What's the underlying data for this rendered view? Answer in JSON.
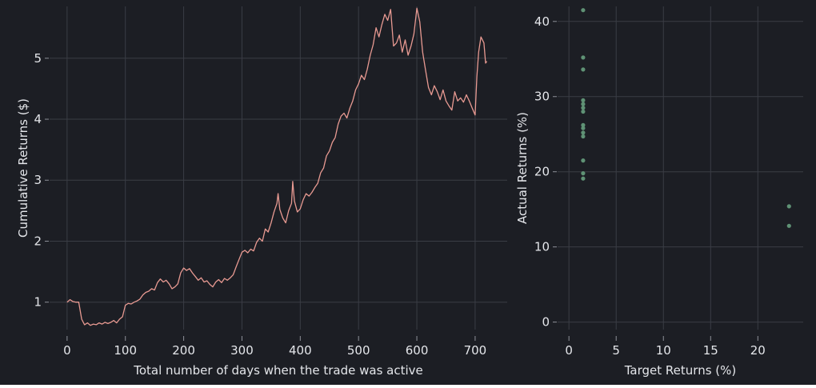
{
  "colors": {
    "background": "#1c1e24",
    "grid": "#3a3d45",
    "axis": "#8e9199",
    "text": "#e4e6ea",
    "line_series": "#e89a92",
    "scatter_series": "#5f9275"
  },
  "chart_data": [
    {
      "type": "line",
      "xlabel": "Total number of days when the trade was active",
      "ylabel": "Cumulative Returns ($)",
      "xlim": [
        -30,
        755
      ],
      "ylim": [
        0.55,
        5.85
      ],
      "xticks": [
        0,
        100,
        200,
        300,
        400,
        500,
        600,
        700
      ],
      "yticks": [
        1,
        2,
        3,
        4,
        5
      ],
      "grid": true,
      "legend": "none",
      "series": [
        {
          "points": [
            [
              0,
              1.0
            ],
            [
              5,
              1.04
            ],
            [
              10,
              1.01
            ],
            [
              15,
              1.0
            ],
            [
              20,
              1.0
            ],
            [
              25,
              0.72
            ],
            [
              30,
              0.63
            ],
            [
              35,
              0.66
            ],
            [
              40,
              0.62
            ],
            [
              45,
              0.64
            ],
            [
              50,
              0.63
            ],
            [
              55,
              0.66
            ],
            [
              60,
              0.64
            ],
            [
              65,
              0.67
            ],
            [
              70,
              0.65
            ],
            [
              75,
              0.67
            ],
            [
              80,
              0.7
            ],
            [
              85,
              0.66
            ],
            [
              90,
              0.72
            ],
            [
              95,
              0.76
            ],
            [
              100,
              0.95
            ],
            [
              105,
              0.98
            ],
            [
              110,
              0.97
            ],
            [
              115,
              1.0
            ],
            [
              120,
              1.02
            ],
            [
              125,
              1.05
            ],
            [
              130,
              1.12
            ],
            [
              135,
              1.16
            ],
            [
              140,
              1.18
            ],
            [
              145,
              1.22
            ],
            [
              150,
              1.2
            ],
            [
              155,
              1.32
            ],
            [
              160,
              1.38
            ],
            [
              165,
              1.33
            ],
            [
              170,
              1.36
            ],
            [
              175,
              1.3
            ],
            [
              180,
              1.22
            ],
            [
              185,
              1.25
            ],
            [
              190,
              1.3
            ],
            [
              195,
              1.48
            ],
            [
              200,
              1.56
            ],
            [
              205,
              1.52
            ],
            [
              210,
              1.55
            ],
            [
              215,
              1.48
            ],
            [
              220,
              1.42
            ],
            [
              225,
              1.36
            ],
            [
              230,
              1.4
            ],
            [
              235,
              1.33
            ],
            [
              240,
              1.35
            ],
            [
              245,
              1.29
            ],
            [
              250,
              1.25
            ],
            [
              255,
              1.33
            ],
            [
              260,
              1.37
            ],
            [
              265,
              1.32
            ],
            [
              270,
              1.39
            ],
            [
              275,
              1.36
            ],
            [
              280,
              1.4
            ],
            [
              285,
              1.45
            ],
            [
              290,
              1.58
            ],
            [
              295,
              1.7
            ],
            [
              300,
              1.82
            ],
            [
              305,
              1.85
            ],
            [
              310,
              1.81
            ],
            [
              315,
              1.87
            ],
            [
              320,
              1.84
            ],
            [
              325,
              1.98
            ],
            [
              330,
              2.05
            ],
            [
              335,
              2.0
            ],
            [
              340,
              2.2
            ],
            [
              345,
              2.15
            ],
            [
              350,
              2.3
            ],
            [
              355,
              2.48
            ],
            [
              360,
              2.62
            ],
            [
              362,
              2.78
            ],
            [
              365,
              2.52
            ],
            [
              370,
              2.38
            ],
            [
              375,
              2.3
            ],
            [
              380,
              2.5
            ],
            [
              385,
              2.62
            ],
            [
              387,
              2.98
            ],
            [
              390,
              2.66
            ],
            [
              395,
              2.48
            ],
            [
              400,
              2.53
            ],
            [
              405,
              2.68
            ],
            [
              410,
              2.78
            ],
            [
              415,
              2.74
            ],
            [
              420,
              2.8
            ],
            [
              425,
              2.88
            ],
            [
              430,
              2.95
            ],
            [
              435,
              3.12
            ],
            [
              440,
              3.2
            ],
            [
              445,
              3.4
            ],
            [
              450,
              3.48
            ],
            [
              455,
              3.62
            ],
            [
              460,
              3.7
            ],
            [
              465,
              3.92
            ],
            [
              470,
              4.05
            ],
            [
              475,
              4.1
            ],
            [
              480,
              4.02
            ],
            [
              485,
              4.18
            ],
            [
              490,
              4.3
            ],
            [
              495,
              4.48
            ],
            [
              500,
              4.58
            ],
            [
              505,
              4.72
            ],
            [
              510,
              4.65
            ],
            [
              515,
              4.82
            ],
            [
              520,
              5.05
            ],
            [
              525,
              5.22
            ],
            [
              530,
              5.5
            ],
            [
              535,
              5.35
            ],
            [
              540,
              5.55
            ],
            [
              545,
              5.72
            ],
            [
              550,
              5.62
            ],
            [
              555,
              5.8
            ],
            [
              560,
              5.2
            ],
            [
              565,
              5.25
            ],
            [
              570,
              5.38
            ],
            [
              575,
              5.1
            ],
            [
              580,
              5.3
            ],
            [
              585,
              5.05
            ],
            [
              590,
              5.2
            ],
            [
              595,
              5.4
            ],
            [
              600,
              5.82
            ],
            [
              605,
              5.6
            ],
            [
              610,
              5.1
            ],
            [
              615,
              4.8
            ],
            [
              620,
              4.52
            ],
            [
              625,
              4.4
            ],
            [
              630,
              4.55
            ],
            [
              635,
              4.45
            ],
            [
              640,
              4.32
            ],
            [
              645,
              4.48
            ],
            [
              650,
              4.3
            ],
            [
              655,
              4.22
            ],
            [
              660,
              4.15
            ],
            [
              665,
              4.45
            ],
            [
              670,
              4.3
            ],
            [
              675,
              4.35
            ],
            [
              680,
              4.28
            ],
            [
              685,
              4.4
            ],
            [
              690,
              4.3
            ],
            [
              695,
              4.18
            ],
            [
              700,
              4.07
            ],
            [
              703,
              4.7
            ],
            [
              706,
              5.1
            ],
            [
              710,
              5.35
            ],
            [
              715,
              5.25
            ],
            [
              718,
              4.92
            ],
            [
              720,
              4.95
            ]
          ]
        }
      ]
    },
    {
      "type": "scatter",
      "xlabel": "Target Returns (%)",
      "ylabel": "Actual Returns (%)",
      "xlim": [
        -1.2,
        24.8
      ],
      "ylim": [
        -1.0,
        42.0
      ],
      "xticks": [
        0,
        5,
        10,
        15,
        20
      ],
      "yticks": [
        0,
        10,
        20,
        30,
        40
      ],
      "grid": true,
      "legend": "none",
      "series": [
        {
          "points": [
            [
              1.5,
              41.5
            ],
            [
              1.5,
              35.2
            ],
            [
              1.5,
              33.6
            ],
            [
              1.5,
              29.5
            ],
            [
              1.5,
              29.0
            ],
            [
              1.5,
              28.5
            ],
            [
              1.5,
              28.0
            ],
            [
              1.5,
              26.2
            ],
            [
              1.5,
              25.8
            ],
            [
              1.5,
              25.2
            ],
            [
              1.5,
              24.7
            ],
            [
              1.5,
              21.5
            ],
            [
              1.5,
              19.8
            ],
            [
              1.5,
              19.1
            ],
            [
              23.3,
              15.4
            ],
            [
              23.3,
              12.8
            ]
          ]
        }
      ]
    }
  ]
}
